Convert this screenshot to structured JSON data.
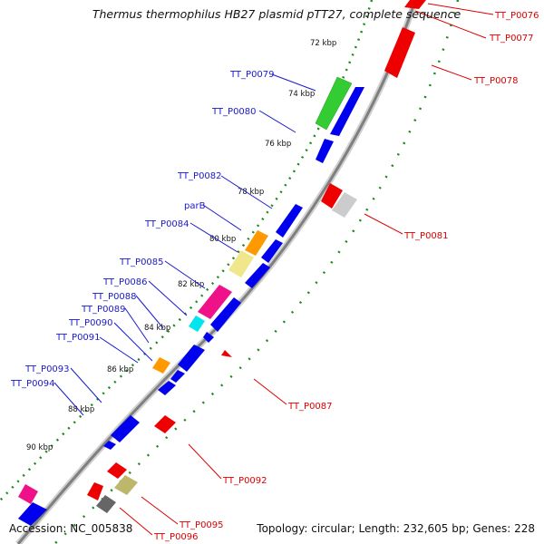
{
  "title": "Thermus thermophilus HB27 plasmid pTT27, complete sequence",
  "footer": {
    "accession": "Accession: NC_005838",
    "summary": "Topology: circular; Length: 232,605 bp; Genes: 228"
  },
  "colors": {
    "forward_label": "#1a1acc",
    "reverse_label": "#dd0000",
    "tick": "#1a8a1a",
    "backbone": "#888888"
  },
  "ticks": [
    "72 kbp",
    "74 kbp",
    "76 kbp",
    "78 kbp",
    "80 kbp",
    "82 kbp",
    "84 kbp",
    "86 kbp",
    "88 kbp",
    "90 kbp"
  ],
  "forward_genes": [
    {
      "label": "TT_P0079",
      "color": "#33cc33"
    },
    {
      "label": "TT_P0080",
      "color": "#0000ee"
    },
    {
      "label": "TT_P0082",
      "color": "#0000ee"
    },
    {
      "label": "parB",
      "color": "#ff9900"
    },
    {
      "label": "TT_P0084",
      "color": "#f0e68c"
    },
    {
      "label": "TT_P0085",
      "color": "#ee1188"
    },
    {
      "label": "TT_P0086",
      "color": "#00e5ee"
    },
    {
      "label": "TT_P0088",
      "color": "#0000ee"
    },
    {
      "label": "TT_P0089",
      "color": "#0000ee"
    },
    {
      "label": "TT_P0090",
      "color": "#ff9900"
    },
    {
      "label": "TT_P0091",
      "color": "#0000ee"
    },
    {
      "label": "TT_P0093",
      "color": "#0000ee"
    },
    {
      "label": "TT_P0094",
      "color": "#0000ee"
    }
  ],
  "reverse_genes": [
    {
      "label": "TT_P0076",
      "color": "#ee0000"
    },
    {
      "label": "TT_P0077",
      "color": "#ee0000"
    },
    {
      "label": "TT_P0078",
      "color": "#ee0000"
    },
    {
      "label": "TT_P0081",
      "color": "#cccccc"
    },
    {
      "label": "TT_P0087",
      "color": "#ee0000"
    },
    {
      "label": "TT_P0092",
      "color": "#ee0000"
    },
    {
      "label": "TT_P0095",
      "color": "#ee0000"
    },
    {
      "label": "TT_P0096",
      "color": "#666666"
    }
  ]
}
